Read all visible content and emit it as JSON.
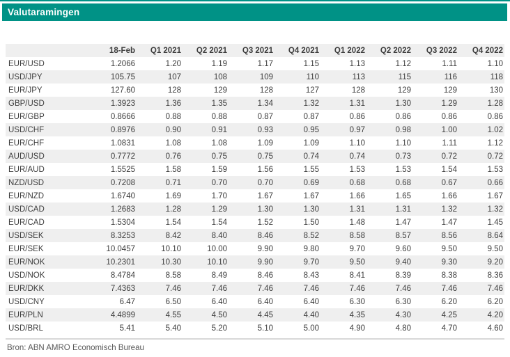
{
  "banner": {
    "title": "Valutaramingen"
  },
  "footer": {
    "source": "Bron: ABN AMRO Economisch Bureau"
  },
  "colors": {
    "banner_bg": "#009286",
    "banner_text": "#ffffff",
    "stripe": "#efefef",
    "text": "#3d3d3d",
    "footer_text": "#595959",
    "divider": "#d8d8d8"
  },
  "chart_data": {
    "type": "table",
    "title": "Valutaramingen",
    "source": "Bron: ABN AMRO Economisch Bureau",
    "corner_label": "",
    "columns": [
      "18-Feb",
      "Q1 2021",
      "Q2 2021",
      "Q3 2021",
      "Q4 2021",
      "Q1 2022",
      "Q2 2022",
      "Q3 2022",
      "Q4 2022"
    ],
    "rows": [
      {
        "pair": "EUR/USD",
        "values": [
          "1.2066",
          "1.20",
          "1.19",
          "1.17",
          "1.15",
          "1.13",
          "1.12",
          "1.11",
          "1.10"
        ]
      },
      {
        "pair": "USD/JPY",
        "values": [
          "105.75",
          "107",
          "108",
          "109",
          "110",
          "113",
          "115",
          "116",
          "118"
        ]
      },
      {
        "pair": "EUR/JPY",
        "values": [
          "127.60",
          "128",
          "129",
          "128",
          "127",
          "128",
          "129",
          "129",
          "130"
        ]
      },
      {
        "pair": "GBP/USD",
        "values": [
          "1.3923",
          "1.36",
          "1.35",
          "1.34",
          "1.32",
          "1.31",
          "1.30",
          "1.29",
          "1.28"
        ]
      },
      {
        "pair": "EUR/GBP",
        "values": [
          "0.8666",
          "0.88",
          "0.88",
          "0.87",
          "0.87",
          "0.86",
          "0.86",
          "0.86",
          "0.86"
        ]
      },
      {
        "pair": "USD/CHF",
        "values": [
          "0.8976",
          "0.90",
          "0.91",
          "0.93",
          "0.95",
          "0.97",
          "0.98",
          "1.00",
          "1.02"
        ]
      },
      {
        "pair": "EUR/CHF",
        "values": [
          "1.0831",
          "1.08",
          "1.08",
          "1.09",
          "1.09",
          "1.10",
          "1.10",
          "1.11",
          "1.12"
        ]
      },
      {
        "pair": "AUD/USD",
        "values": [
          "0.7772",
          "0.76",
          "0.75",
          "0.75",
          "0.74",
          "0.74",
          "0.73",
          "0.72",
          "0.72"
        ]
      },
      {
        "pair": "EUR/AUD",
        "values": [
          "1.5525",
          "1.58",
          "1.59",
          "1.56",
          "1.55",
          "1.53",
          "1.53",
          "1.54",
          "1.53"
        ]
      },
      {
        "pair": "NZD/USD",
        "values": [
          "0.7208",
          "0.71",
          "0.70",
          "0.70",
          "0.69",
          "0.68",
          "0.68",
          "0.67",
          "0.66"
        ]
      },
      {
        "pair": "EUR/NZD",
        "values": [
          "1.6740",
          "1.69",
          "1.70",
          "1.67",
          "1.67",
          "1.66",
          "1.65",
          "1.66",
          "1.67"
        ]
      },
      {
        "pair": "USD/CAD",
        "values": [
          "1.2683",
          "1.28",
          "1.29",
          "1.30",
          "1.30",
          "1.31",
          "1.31",
          "1.32",
          "1.32"
        ]
      },
      {
        "pair": "EUR/CAD",
        "values": [
          "1.5304",
          "1.54",
          "1.54",
          "1.52",
          "1.50",
          "1.48",
          "1.47",
          "1.47",
          "1.45"
        ]
      },
      {
        "pair": "USD/SEK",
        "values": [
          "8.3253",
          "8.42",
          "8.40",
          "8.46",
          "8.52",
          "8.58",
          "8.57",
          "8.56",
          "8.64"
        ]
      },
      {
        "pair": "EUR/SEK",
        "values": [
          "10.0457",
          "10.10",
          "10.00",
          "9.90",
          "9.80",
          "9.70",
          "9.60",
          "9.50",
          "9.50"
        ]
      },
      {
        "pair": "EUR/NOK",
        "values": [
          "10.2301",
          "10.30",
          "10.10",
          "9.90",
          "9.70",
          "9.50",
          "9.40",
          "9.30",
          "9.20"
        ]
      },
      {
        "pair": "USD/NOK",
        "values": [
          "8.4784",
          "8.58",
          "8.49",
          "8.46",
          "8.43",
          "8.41",
          "8.39",
          "8.38",
          "8.36"
        ]
      },
      {
        "pair": "EUR/DKK",
        "values": [
          "7.4363",
          "7.46",
          "7.46",
          "7.46",
          "7.46",
          "7.46",
          "7.46",
          "7.46",
          "7.46"
        ]
      },
      {
        "pair": "USD/CNY",
        "values": [
          "6.47",
          "6.50",
          "6.40",
          "6.40",
          "6.40",
          "6.30",
          "6.30",
          "6.20",
          "6.20"
        ]
      },
      {
        "pair": "EUR/PLN",
        "values": [
          "4.4899",
          "4.55",
          "4.50",
          "4.45",
          "4.40",
          "4.35",
          "4.30",
          "4.25",
          "4.20"
        ]
      },
      {
        "pair": "USD/BRL",
        "values": [
          "5.41",
          "5.40",
          "5.20",
          "5.10",
          "5.00",
          "4.90",
          "4.80",
          "4.70",
          "4.60"
        ]
      }
    ]
  }
}
